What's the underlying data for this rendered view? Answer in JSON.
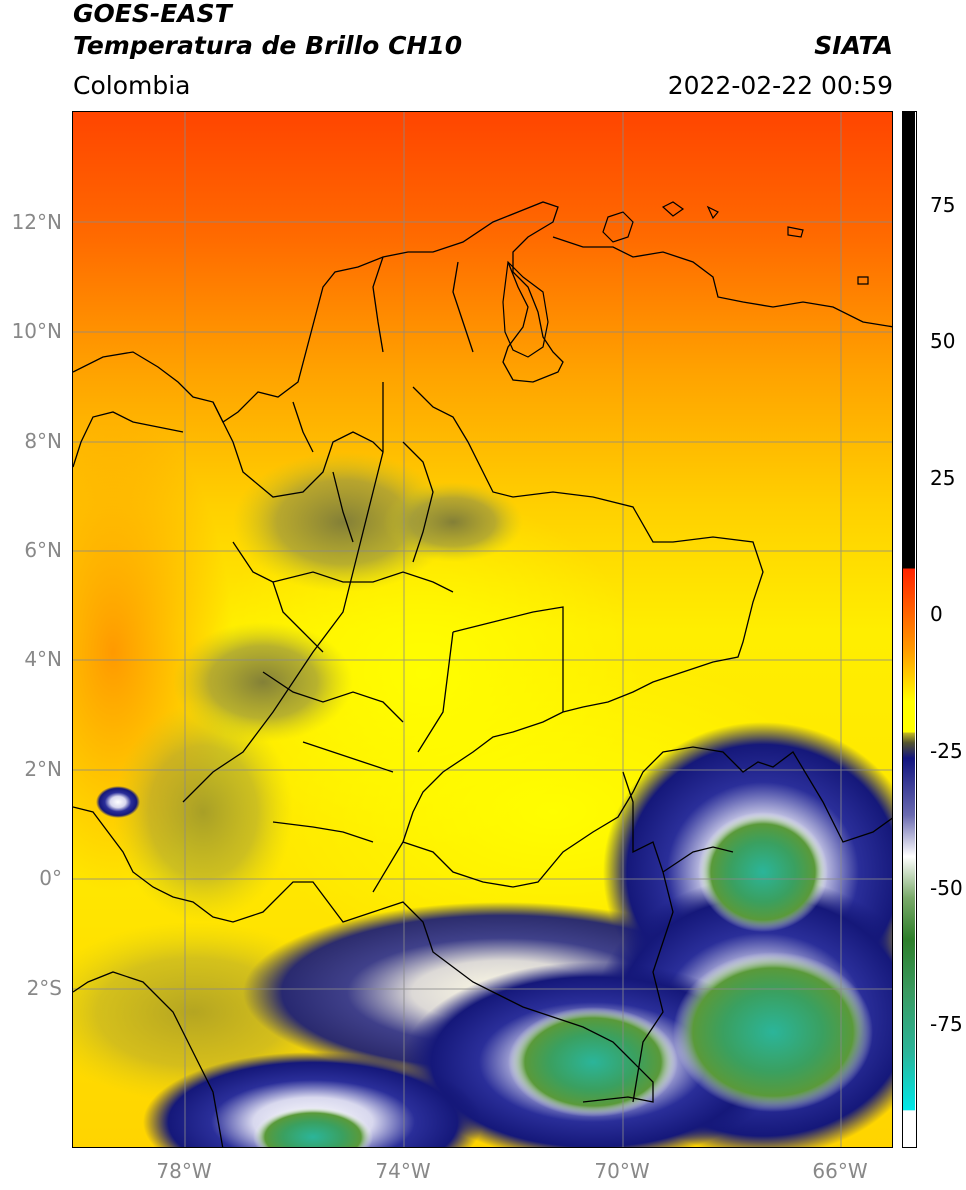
{
  "header": {
    "satellite": "GOES-EAST",
    "product": "Temperatura de Brillo CH10",
    "organization": "SIATA",
    "region": "Colombia",
    "datetime": "2022-02-22 00:59"
  },
  "map": {
    "lat_labels": [
      {
        "label": "12°N",
        "value": 12
      },
      {
        "label": "10°N",
        "value": 10
      },
      {
        "label": "8°N",
        "value": 8
      },
      {
        "label": "6°N",
        "value": 6
      },
      {
        "label": "4°N",
        "value": 4
      },
      {
        "label": "2°N",
        "value": 2
      },
      {
        "label": "0°",
        "value": 0
      },
      {
        "label": "2°S",
        "value": -2
      }
    ],
    "lon_labels": [
      {
        "label": "78°W",
        "value": -78
      },
      {
        "label": "74°W",
        "value": -74
      },
      {
        "label": "70°W",
        "value": -70
      },
      {
        "label": "66°W",
        "value": -66
      }
    ],
    "colors": {
      "warm_red": "#ff4a00",
      "orange": "#ff9a00",
      "yellow": "#ffff00",
      "olive": "#8c8c38",
      "navy": "#12157f",
      "white": "#ffffff",
      "green": "#3a8a2e",
      "teal": "#2bb59a"
    }
  },
  "colorbar": {
    "ticks": [
      {
        "label": "75",
        "value": 75
      },
      {
        "label": "50",
        "value": 50
      },
      {
        "label": "25",
        "value": 25
      },
      {
        "label": "0",
        "value": 0
      },
      {
        "label": "-25",
        "value": -25
      },
      {
        "label": "-50",
        "value": -50
      },
      {
        "label": "-75",
        "value": -75
      }
    ]
  }
}
